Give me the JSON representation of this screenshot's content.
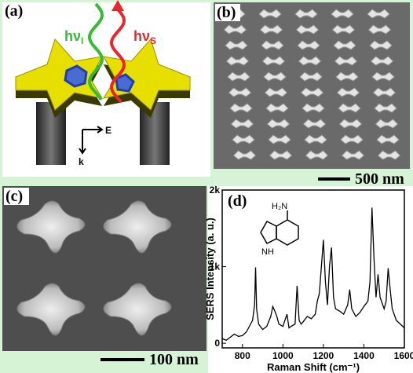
{
  "panel_a": {
    "label": "(a)",
    "incident": {
      "text": "hν",
      "sub": "I"
    },
    "scattered": {
      "text": "hν",
      "sub": "S"
    },
    "field": "E",
    "wavevector": "k"
  },
  "panel_b": {
    "label": "(b)",
    "scale_bar": "500 nm"
  },
  "panel_c": {
    "label": "(c)",
    "scale_bar": "100 nm"
  },
  "chart_data": {
    "type": "line",
    "label": "(d)",
    "xlabel": "Raman Shift (cm⁻¹)",
    "ylabel": "SERS Intensity (a. u.)",
    "molecule": {
      "amine": "H₂N",
      "imine": "NH"
    },
    "x": [
      700,
      720,
      740,
      760,
      780,
      800,
      820,
      840,
      850,
      860,
      865,
      870,
      880,
      900,
      920,
      940,
      950,
      960,
      970,
      980,
      1000,
      1020,
      1030,
      1040,
      1060,
      1070,
      1080,
      1090,
      1100,
      1120,
      1140,
      1160,
      1170,
      1180,
      1190,
      1200,
      1210,
      1220,
      1230,
      1240,
      1250,
      1260,
      1280,
      1300,
      1320,
      1330,
      1340,
      1360,
      1380,
      1400,
      1420,
      1430,
      1440,
      1450,
      1460,
      1470,
      1480,
      1500,
      1510,
      1520,
      1530,
      1540,
      1560,
      1580,
      1600
    ],
    "series": [
      {
        "color": "#000000",
        "values": [
          60,
          40,
          80,
          120,
          90,
          100,
          150,
          250,
          300,
          500,
          990,
          450,
          250,
          180,
          220,
          350,
          480,
          420,
          350,
          250,
          220,
          380,
          200,
          220,
          250,
          750,
          300,
          250,
          280,
          350,
          320,
          380,
          550,
          650,
          1000,
          1350,
          800,
          500,
          1000,
          1250,
          600,
          450,
          420,
          380,
          500,
          700,
          450,
          350,
          400,
          480,
          550,
          800,
          1770,
          1100,
          600,
          900,
          600,
          450,
          550,
          980,
          700,
          450,
          300,
          250,
          200
        ]
      }
    ],
    "xlim": [
      700,
      1600
    ],
    "ylim": [
      -60,
      2000
    ],
    "xticks": [
      800,
      1000,
      1200,
      1400,
      1600
    ],
    "yticks": [
      0,
      {
        "value": 1000,
        "label": "1k"
      },
      {
        "value": 2000,
        "label": "2k"
      }
    ]
  }
}
